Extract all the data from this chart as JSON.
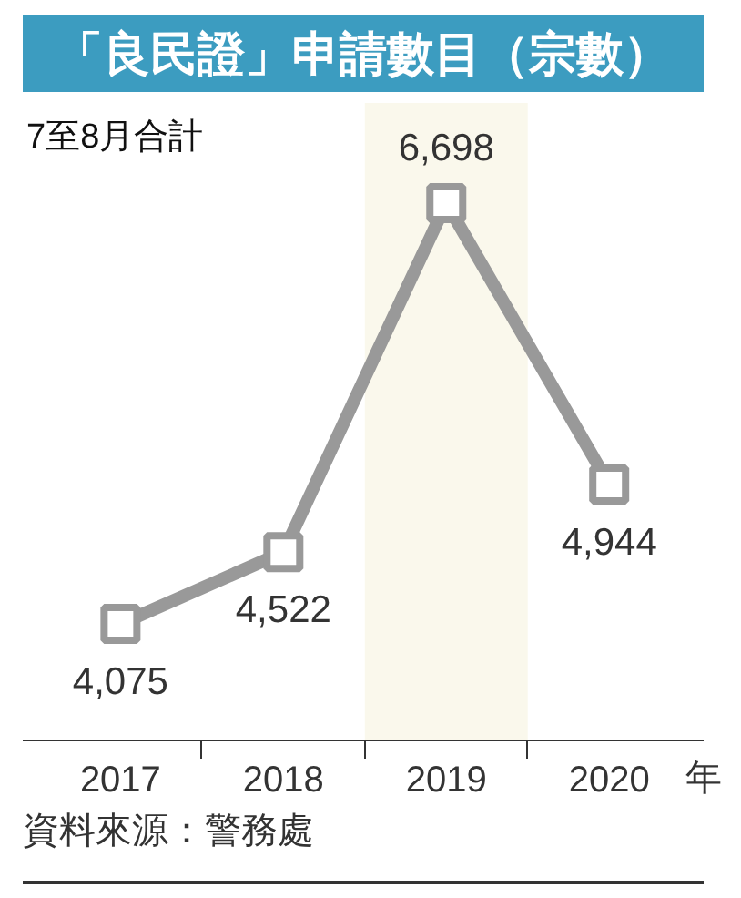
{
  "chart_data": {
    "type": "line",
    "title": "「良民證」申請數目（宗數）",
    "subtitle": "7至8月合計",
    "xlabel": "年",
    "categories": [
      "2017",
      "2018",
      "2019",
      "2020"
    ],
    "series": [
      {
        "color": "#999999",
        "values": [
          4075,
          4522,
          6698,
          4944
        ],
        "value_labels": [
          "4,075",
          "4,522",
          "6,698",
          "4,944"
        ]
      }
    ],
    "tick_labels": "x",
    "marker": "square",
    "line_style": "solid",
    "bands": [
      {
        "axis": "x",
        "from": "2019",
        "to": "2019",
        "color": "#faf8ec"
      }
    ],
    "annotations": [
      "資料來源：警務處"
    ]
  }
}
